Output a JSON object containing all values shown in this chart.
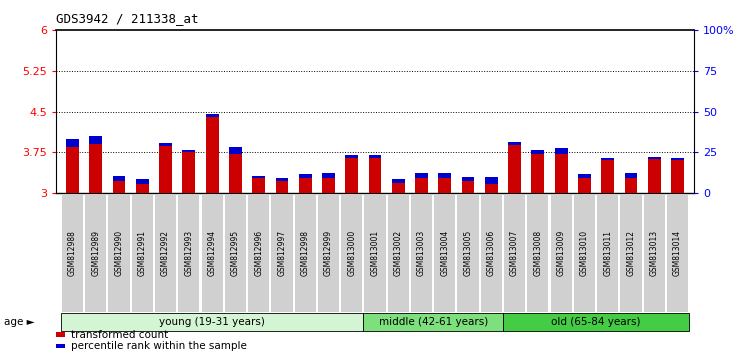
{
  "title": "GDS3942 / 211338_at",
  "samples": [
    "GSM812988",
    "GSM812989",
    "GSM812990",
    "GSM812991",
    "GSM812992",
    "GSM812993",
    "GSM812994",
    "GSM812995",
    "GSM812996",
    "GSM812997",
    "GSM812998",
    "GSM812999",
    "GSM813000",
    "GSM813001",
    "GSM813002",
    "GSM813003",
    "GSM813004",
    "GSM813005",
    "GSM813006",
    "GSM813007",
    "GSM813008",
    "GSM813009",
    "GSM813010",
    "GSM813011",
    "GSM813012",
    "GSM813013",
    "GSM813014"
  ],
  "red_values": [
    3.85,
    3.9,
    3.22,
    3.17,
    3.87,
    3.75,
    4.4,
    3.72,
    3.27,
    3.22,
    3.27,
    3.27,
    3.65,
    3.65,
    3.18,
    3.27,
    3.27,
    3.22,
    3.17,
    3.88,
    3.72,
    3.72,
    3.27,
    3.6,
    3.27,
    3.62,
    3.6
  ],
  "blue_values": [
    0.15,
    0.15,
    0.1,
    0.08,
    0.05,
    0.05,
    0.05,
    0.12,
    0.05,
    0.05,
    0.08,
    0.1,
    0.05,
    0.05,
    0.08,
    0.1,
    0.1,
    0.08,
    0.12,
    0.05,
    0.08,
    0.1,
    0.08,
    0.05,
    0.1,
    0.05,
    0.05
  ],
  "ylim_left": [
    3.0,
    6.0
  ],
  "ylim_right": [
    0,
    100
  ],
  "yticks_left": [
    3.0,
    3.75,
    4.5,
    5.25,
    6.0
  ],
  "ytick_labels_left": [
    "3",
    "3.75",
    "4.5",
    "5.25",
    "6"
  ],
  "yticks_right": [
    0,
    25,
    50,
    75,
    100
  ],
  "ytick_labels_right": [
    "0",
    "25",
    "50",
    "75",
    "100%"
  ],
  "grid_lines": [
    3.75,
    4.5,
    5.25
  ],
  "age_groups": [
    {
      "label": "young (19-31 years)",
      "start": 0,
      "end": 13,
      "color": "#d4f5d4"
    },
    {
      "label": "middle (42-61 years)",
      "start": 13,
      "end": 19,
      "color": "#7de07d"
    },
    {
      "label": "old (65-84 years)",
      "start": 19,
      "end": 27,
      "color": "#44cc44"
    }
  ],
  "bar_width": 0.55,
  "red_color": "#cc0000",
  "blue_color": "#0000cc",
  "legend_items": [
    "transformed count",
    "percentile rank within the sample"
  ],
  "age_label": "age",
  "background_color": "#ffffff",
  "plot_bg_color": "#ffffff",
  "tick_label_bg": "#d0d0d0"
}
